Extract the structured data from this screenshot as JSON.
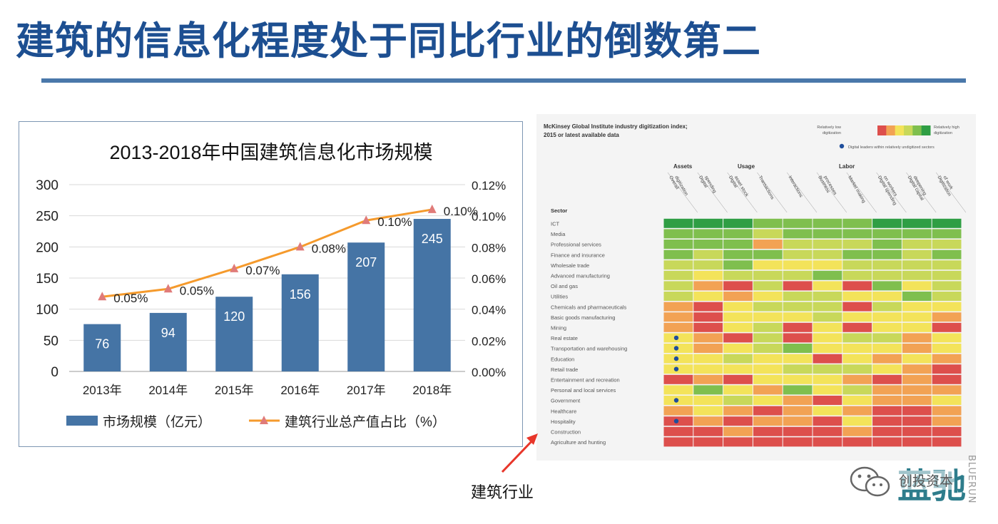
{
  "slide": {
    "title": "建筑的信息化程度处于同比行业的倒数第二",
    "caption": "建筑行业"
  },
  "colors": {
    "title": "#1d4f91",
    "bar": "#4574a5",
    "line": "#f59a2c",
    "marker": "#e07b79"
  },
  "chart_data": [
    {
      "type": "bar",
      "title": "2013-2018年中国建筑信息化市场规模",
      "categories": [
        "2013年",
        "2014年",
        "2015年",
        "2016年",
        "2017年",
        "2018年"
      ],
      "series": [
        {
          "name": "市场规模（亿元）",
          "type": "bar",
          "axis": "left",
          "values": [
            76,
            94,
            120,
            156,
            207,
            245
          ]
        },
        {
          "name": "建筑行业总产值占比（%）",
          "type": "line",
          "axis": "right",
          "values": [
            0.048,
            0.053,
            0.066,
            0.08,
            0.097,
            0.104
          ],
          "labels": [
            "0.05%",
            "0.05%",
            "0.07%",
            "0.08%",
            "0.10%",
            "0.10%"
          ]
        }
      ],
      "y_left": {
        "min": 0,
        "max": 300,
        "ticks": [
          "0",
          "50",
          "100",
          "150",
          "200",
          "250",
          "300"
        ]
      },
      "y_right": {
        "min": 0,
        "max": 0.12,
        "ticks": [
          "0.00%",
          "0.02%",
          "0.04%",
          "0.06%",
          "0.08%",
          "0.10%",
          "0.12%"
        ]
      },
      "grid": true,
      "legend": "bottom"
    },
    {
      "type": "heatmap",
      "title": "McKinsey Global Institute industry digitization index;",
      "subtitle": "2015 or latest available data",
      "scale_low": [
        "Relatively low",
        "digitization"
      ],
      "scale_high": [
        "Relatively high",
        "digitization"
      ],
      "dot_legend": "Digital leaders within relatively undigitized sectors",
      "group_labels": [
        "Assets",
        "Usage",
        "Labor"
      ],
      "column_labels": [
        [
          "Overall",
          "digitization"
        ],
        [
          "Digital",
          "spending"
        ],
        [
          "Digital",
          "asset stock"
        ],
        [
          "Transactions"
        ],
        [
          "Interactions"
        ],
        [
          "Business",
          "processes"
        ],
        [
          "Market making"
        ],
        [
          "Digital spending",
          "on workers"
        ],
        [
          "Digital capital",
          "deepening"
        ],
        [
          "Digitization",
          "of work"
        ]
      ],
      "row_header": "Sector",
      "rows": [
        "ICT",
        "Media",
        "Professional services",
        "Finance and insurance",
        "Wholesale trade",
        "Advanced manufacturing",
        "Oil and gas",
        "Utilities",
        "Chemicals and pharmaceuticals",
        "Basic goods manufacturing",
        "Mining",
        "Real estate",
        "Transportation and warehousing",
        "Education",
        "Retail trade",
        "Entertainment and recreation",
        "Personal and local services",
        "Government",
        "Healthcare",
        "Hospitality",
        "Construction",
        "Agriculture and hunting"
      ],
      "levels": [
        [
          5,
          5,
          5,
          4,
          4,
          4,
          4,
          5,
          5,
          5
        ],
        [
          4,
          4,
          4,
          3,
          4,
          4,
          4,
          4,
          4,
          4
        ],
        [
          4,
          4,
          4,
          1,
          3,
          3,
          3,
          4,
          3,
          3
        ],
        [
          4,
          3,
          4,
          4,
          3,
          3,
          4,
          4,
          3,
          4
        ],
        [
          3,
          3,
          4,
          2,
          2,
          2,
          3,
          3,
          3,
          3
        ],
        [
          3,
          2,
          3,
          3,
          3,
          4,
          3,
          3,
          3,
          3
        ],
        [
          3,
          1,
          0,
          3,
          0,
          2,
          0,
          4,
          2,
          3
        ],
        [
          3,
          2,
          1,
          2,
          3,
          3,
          2,
          2,
          4,
          3
        ],
        [
          1,
          0,
          2,
          3,
          3,
          3,
          0,
          3,
          2,
          2
        ],
        [
          1,
          0,
          2,
          2,
          2,
          3,
          2,
          2,
          2,
          1
        ],
        [
          1,
          0,
          2,
          3,
          0,
          2,
          0,
          2,
          2,
          0
        ],
        [
          2,
          1,
          0,
          3,
          0,
          2,
          3,
          3,
          1,
          2
        ],
        [
          2,
          1,
          2,
          3,
          4,
          2,
          2,
          2,
          1,
          2
        ],
        [
          2,
          2,
          3,
          2,
          2,
          0,
          2,
          1,
          2,
          1
        ],
        [
          2,
          2,
          2,
          2,
          3,
          3,
          3,
          2,
          1,
          0
        ],
        [
          0,
          1,
          0,
          2,
          2,
          2,
          1,
          0,
          1,
          0
        ],
        [
          2,
          4,
          2,
          1,
          4,
          2,
          3,
          1,
          1,
          1
        ],
        [
          2,
          2,
          3,
          2,
          1,
          0,
          2,
          1,
          1,
          2
        ],
        [
          1,
          2,
          1,
          0,
          1,
          2,
          1,
          0,
          0,
          1
        ],
        [
          0,
          1,
          0,
          1,
          1,
          0,
          2,
          0,
          0,
          1
        ],
        [
          0,
          0,
          1,
          0,
          0,
          0,
          1,
          0,
          0,
          0
        ],
        [
          0,
          0,
          0,
          0,
          0,
          0,
          0,
          0,
          0,
          0
        ]
      ],
      "dot_rows": [
        11,
        12,
        13,
        14,
        17,
        19
      ]
    }
  ],
  "logo": {
    "big": "蓝驰",
    "small": "创投资本",
    "vertical": "BLUERUN",
    "wechat_icon": "wechat-icon"
  }
}
